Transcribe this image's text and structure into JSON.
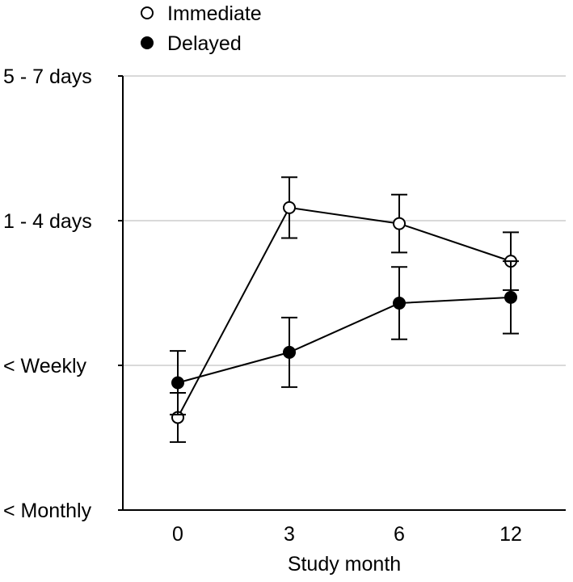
{
  "chart_data": {
    "type": "line",
    "title": "",
    "xlabel": "Study month",
    "ylabel": "",
    "categories": [
      "0",
      "3",
      "6",
      "12"
    ],
    "y_tick_labels": [
      "< Monthly",
      "< Weekly",
      "1 - 4 days",
      "5 - 7 days"
    ],
    "ylim": [
      0,
      3
    ],
    "grid": "horizontal",
    "legend_position": "top-left",
    "series": [
      {
        "name": "Immediate",
        "marker": "open-circle",
        "values": [
          0.64,
          2.09,
          1.98,
          1.72
        ],
        "error": [
          0.17,
          0.21,
          0.2,
          0.2
        ]
      },
      {
        "name": "Delayed",
        "marker": "filled-circle",
        "values": [
          0.88,
          1.09,
          1.43,
          1.47
        ],
        "error": [
          0.22,
          0.24,
          0.25,
          0.25
        ]
      }
    ],
    "colors": {
      "line": "#000000",
      "grid": "#d9d9d9",
      "fill_open": "#ffffff",
      "fill_filled": "#000000"
    }
  }
}
